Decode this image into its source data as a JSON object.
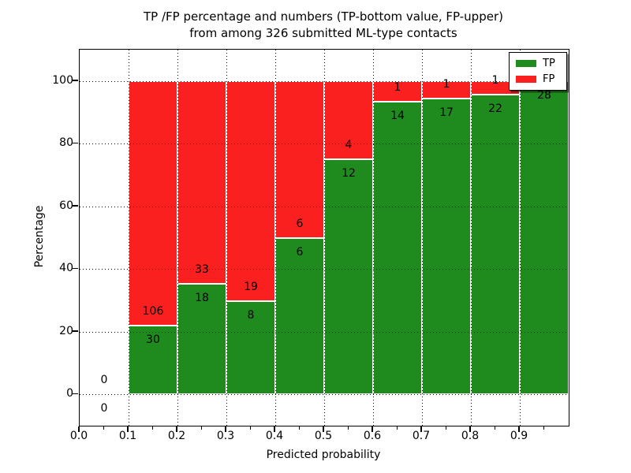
{
  "title": {
    "line1": "TP /FP percentage and numbers (TP-bottom value, FP-upper)",
    "line2": "from among 326 submitted ML-type contacts"
  },
  "axes": {
    "xlabel": "Predicted probability",
    "ylabel": "Percentage",
    "x_tick_labels": [
      "0.0",
      "0.1",
      "0.2",
      "0.3",
      "0.4",
      "0.5",
      "0.6",
      "0.7",
      "0.8",
      "0.9"
    ],
    "y_tick_labels": [
      "0",
      "20",
      "40",
      "60",
      "80",
      "100"
    ],
    "y_tick_values": [
      0,
      20,
      40,
      60,
      80,
      100
    ]
  },
  "legend": {
    "items": [
      {
        "label": "TP",
        "color": "#1f8b1e"
      },
      {
        "label": "FP",
        "color": "#fb2020"
      }
    ]
  },
  "chart_data": {
    "type": "bar",
    "stacked": true,
    "normalized_to_percent": true,
    "title": "TP /FP percentage and numbers (TP-bottom value, FP-upper) from among 326 submitted ML-type contacts",
    "xlabel": "Predicted probability",
    "ylabel": "Percentage",
    "xlim": [
      0.0,
      1.0
    ],
    "ylim": [
      -10,
      110
    ],
    "grid": true,
    "legend_position": "upper right",
    "total_contacts": 326,
    "bin_edges": [
      0.0,
      0.1,
      0.2,
      0.3,
      0.4,
      0.5,
      0.6,
      0.7,
      0.8,
      0.9,
      1.0
    ],
    "series": [
      {
        "name": "TP",
        "color": "#1f8b1e",
        "counts": [
          0,
          30,
          18,
          8,
          6,
          12,
          14,
          17,
          22,
          28
        ]
      },
      {
        "name": "FP",
        "color": "#fb2020",
        "counts": [
          0,
          106,
          33,
          19,
          6,
          4,
          1,
          1,
          1,
          0
        ]
      }
    ],
    "tp_percent_per_bin": [
      0,
      22.06,
      35.29,
      29.63,
      50.0,
      75.0,
      93.33,
      94.44,
      95.65,
      100.0
    ]
  }
}
